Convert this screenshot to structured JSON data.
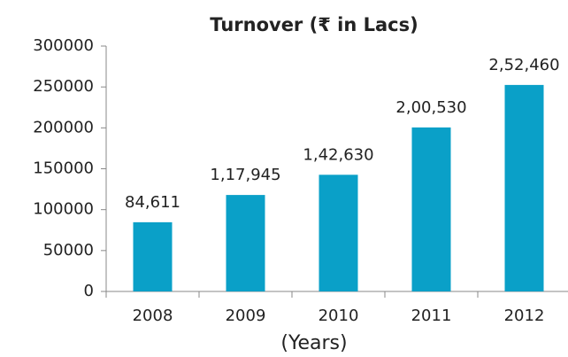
{
  "chart_data": {
    "type": "bar",
    "title": "Turnover (₹ in Lacs)",
    "x_label": "(Years)",
    "categories": [
      "2008",
      "2009",
      "2010",
      "2011",
      "2012"
    ],
    "values": [
      84611,
      117945,
      142630,
      200530,
      252460
    ],
    "value_labels": [
      "84,611",
      "1,17,945",
      "1,42,630",
      "2,00,530",
      "2,52,460"
    ],
    "color": "#0aa0c8",
    "ylim": [
      0,
      300000
    ],
    "yticks": [
      0,
      50000,
      100000,
      150000,
      200000,
      250000,
      300000
    ],
    "grid": false
  }
}
